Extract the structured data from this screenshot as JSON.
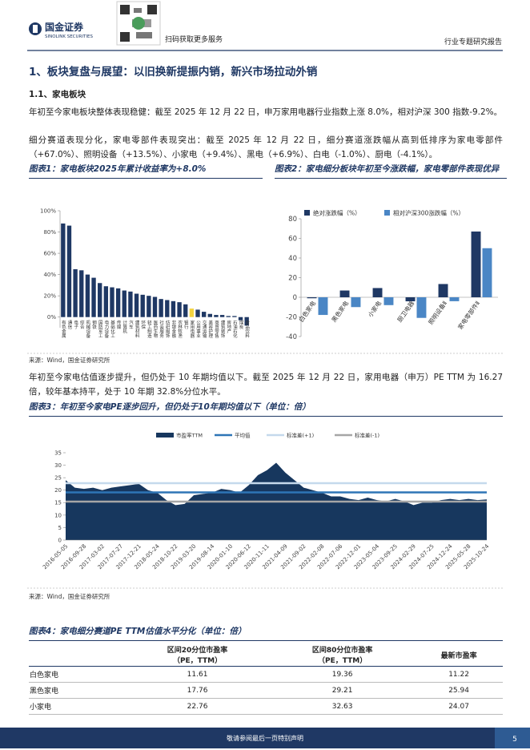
{
  "header": {
    "logo_cn": "国金证券",
    "logo_en": "SINOLINK SECURITIES",
    "qr_caption": "扫码获取更多服务",
    "report_type": "行业专题研究报告"
  },
  "section_title": "1、板块复盘与展望：以旧换新提振内销，新兴市场拉动外销",
  "subsection_title": "1.1、家电板块",
  "paragraphs": [
    "年初至今家电板块整体表现稳健：截至 2025 年 12 月 22 日，申万家用电器行业指数上涨 8.0%，相对沪深 300 指数-9.2%。",
    "细分赛道表现分化，家电零部件表现突出：截至 2025 年 12 月 22 日，细分赛道涨跌幅从高到低排序为家电零部件（+67.0%）、照明设备（+13.5%）、小家电（+9.4%）、黑电（+6.9%）、白电（-1.0%）、厨电（-4.1%）。",
    "年初至今家电估值逐步提升，但仍处于 10 年期均值以下。截至 2025 年 12 月 22 日，家用电器（申万）PE TTM 为 16.27 倍，较年基本持平，处于 10 年期 32.8%分位水平。"
  ],
  "chart_data": [
    {
      "type": "bar",
      "title": "图表1：家电板块2025年累计收益率为+8.0%",
      "source": "来源：Wind，国金证券研究所",
      "categories": [
        "有色金属",
        "通信",
        "电子",
        "综合",
        "机械设备",
        "钢铁",
        "国防军工",
        "电力设备",
        "基础化工",
        "传媒",
        "计算机",
        "汽车",
        "建筑材料",
        "环保",
        "轻工制造",
        "医药生物",
        "社会服务",
        "纺织服饰",
        "非银金融",
        "农林牧渔",
        "银行",
        "家用电器",
        "公用事业",
        "交通运输",
        "美容护理",
        "商贸零售",
        "建筑装饰",
        "房地产",
        "石油石化",
        "煤炭",
        "食品饮料"
      ],
      "values": [
        88,
        86,
        45,
        44,
        40,
        37,
        32,
        29,
        28,
        27,
        25,
        24,
        22,
        21,
        20,
        19,
        17,
        16,
        15,
        14,
        12,
        8,
        7,
        5,
        3,
        2,
        2,
        1,
        1,
        -3,
        -8
      ],
      "color": "#1f3864",
      "highlight_category": "家用电器",
      "highlight_color": "#f2d340",
      "ylim": [
        -10,
        100
      ],
      "yticks": [
        {
          "value": 0,
          "label": "0%"
        },
        {
          "value": 20,
          "label": "20%"
        },
        {
          "value": 40,
          "label": "40%"
        },
        {
          "value": 60,
          "label": "60%"
        },
        {
          "value": 80,
          "label": "80%"
        },
        {
          "value": 100,
          "label": "100%"
        }
      ]
    },
    {
      "type": "grouped_bar",
      "title": "图表2：家电细分板块年初至今涨跌幅，家电零部件表现优异",
      "categories": [
        "白色家电",
        "黑色家电",
        "小家电",
        "厨卫电器",
        "照明设备Ⅱ",
        "家电零部件Ⅱ"
      ],
      "series": [
        {
          "name": "绝对涨跌幅（%）",
          "color": "#1f3864",
          "values": [
            -1.0,
            6.9,
            9.4,
            -4.1,
            13.5,
            67.0
          ]
        },
        {
          "name": "相对沪深300涨跌幅（%）",
          "color": "#4a86c5",
          "values": [
            -18,
            -10,
            -8,
            -21,
            -4,
            50
          ]
        }
      ],
      "ylim": [
        -40,
        80
      ],
      "yticks": [
        -40,
        -20,
        0,
        20,
        40,
        60,
        80
      ]
    },
    {
      "type": "area",
      "title": "图表3：年初至今家电PE逐步回升，但仍处于10年期均值以下（单位：倍）",
      "source": "来源：Wind，国金证券研究所",
      "x": [
        "2016-05-05",
        null,
        "2016-09-28",
        null,
        "2017-03-02",
        null,
        "2017-07-27",
        null,
        "2017-12-21",
        null,
        "2018-05-24",
        null,
        "2018-10-22",
        null,
        "2019-03-20",
        null,
        "2019-08-14",
        null,
        "2020-01-10",
        null,
        "2020-06-12",
        null,
        "2020-11-11",
        null,
        "2021-04-09",
        null,
        "2021-09-02",
        null,
        "2022-02-08",
        null,
        "2022-07-06",
        null,
        "2022-12-01",
        null,
        "2023-05-04",
        null,
        "2023-09-25",
        null,
        "2024-02-29",
        null,
        "2024-07-25",
        null,
        "2024-12-24",
        null,
        "2025-05-28",
        null,
        "2025-10-24"
      ],
      "series": [
        {
          "name": "市盈率TTM",
          "color": "#17375e",
          "values": [
            24,
            21,
            20.5,
            21,
            20,
            21,
            21.5,
            22,
            22.5,
            20,
            19,
            16,
            14,
            14.5,
            18,
            18.5,
            19,
            20.5,
            20,
            19,
            22,
            26,
            28,
            31,
            27,
            24,
            21,
            20,
            19,
            17.5,
            17.5,
            16.5,
            16,
            17,
            16,
            15.5,
            16.5,
            15.5,
            14,
            15,
            15,
            16,
            16.5,
            16,
            16.5,
            16,
            16.3
          ]
        },
        {
          "name": "平均值",
          "color": "#2e75b6",
          "value": 19.1
        },
        {
          "name": "标准差(+1)",
          "color": "#c5d9ec",
          "value": 22.8
        },
        {
          "name": "标准差(-1)",
          "color": "#a6a6a6",
          "value": 15.4
        }
      ],
      "ylim": [
        0,
        35
      ],
      "yticks": [
        0,
        5,
        10,
        15,
        20,
        25,
        30,
        35
      ]
    }
  ],
  "table": {
    "title": "图表4：家电细分赛道PE TTM估值水平分化（单位：倍）",
    "header": [
      [
        "区间20分位市盈率",
        "（PE，TTM）"
      ],
      [
        "区间80分位市盈率",
        "（PE，TTM）"
      ],
      [
        "最新市盈率"
      ]
    ],
    "rows": [
      [
        "白色家电",
        "11.61",
        "19.36",
        "11.22"
      ],
      [
        "黑色家电",
        "17.76",
        "29.21",
        "25.94"
      ],
      [
        "小家电",
        "22.76",
        "32.63",
        "24.07"
      ]
    ]
  },
  "footer": {
    "disclaimer": "敬请参阅最后一页特别声明",
    "page_number": 5
  }
}
